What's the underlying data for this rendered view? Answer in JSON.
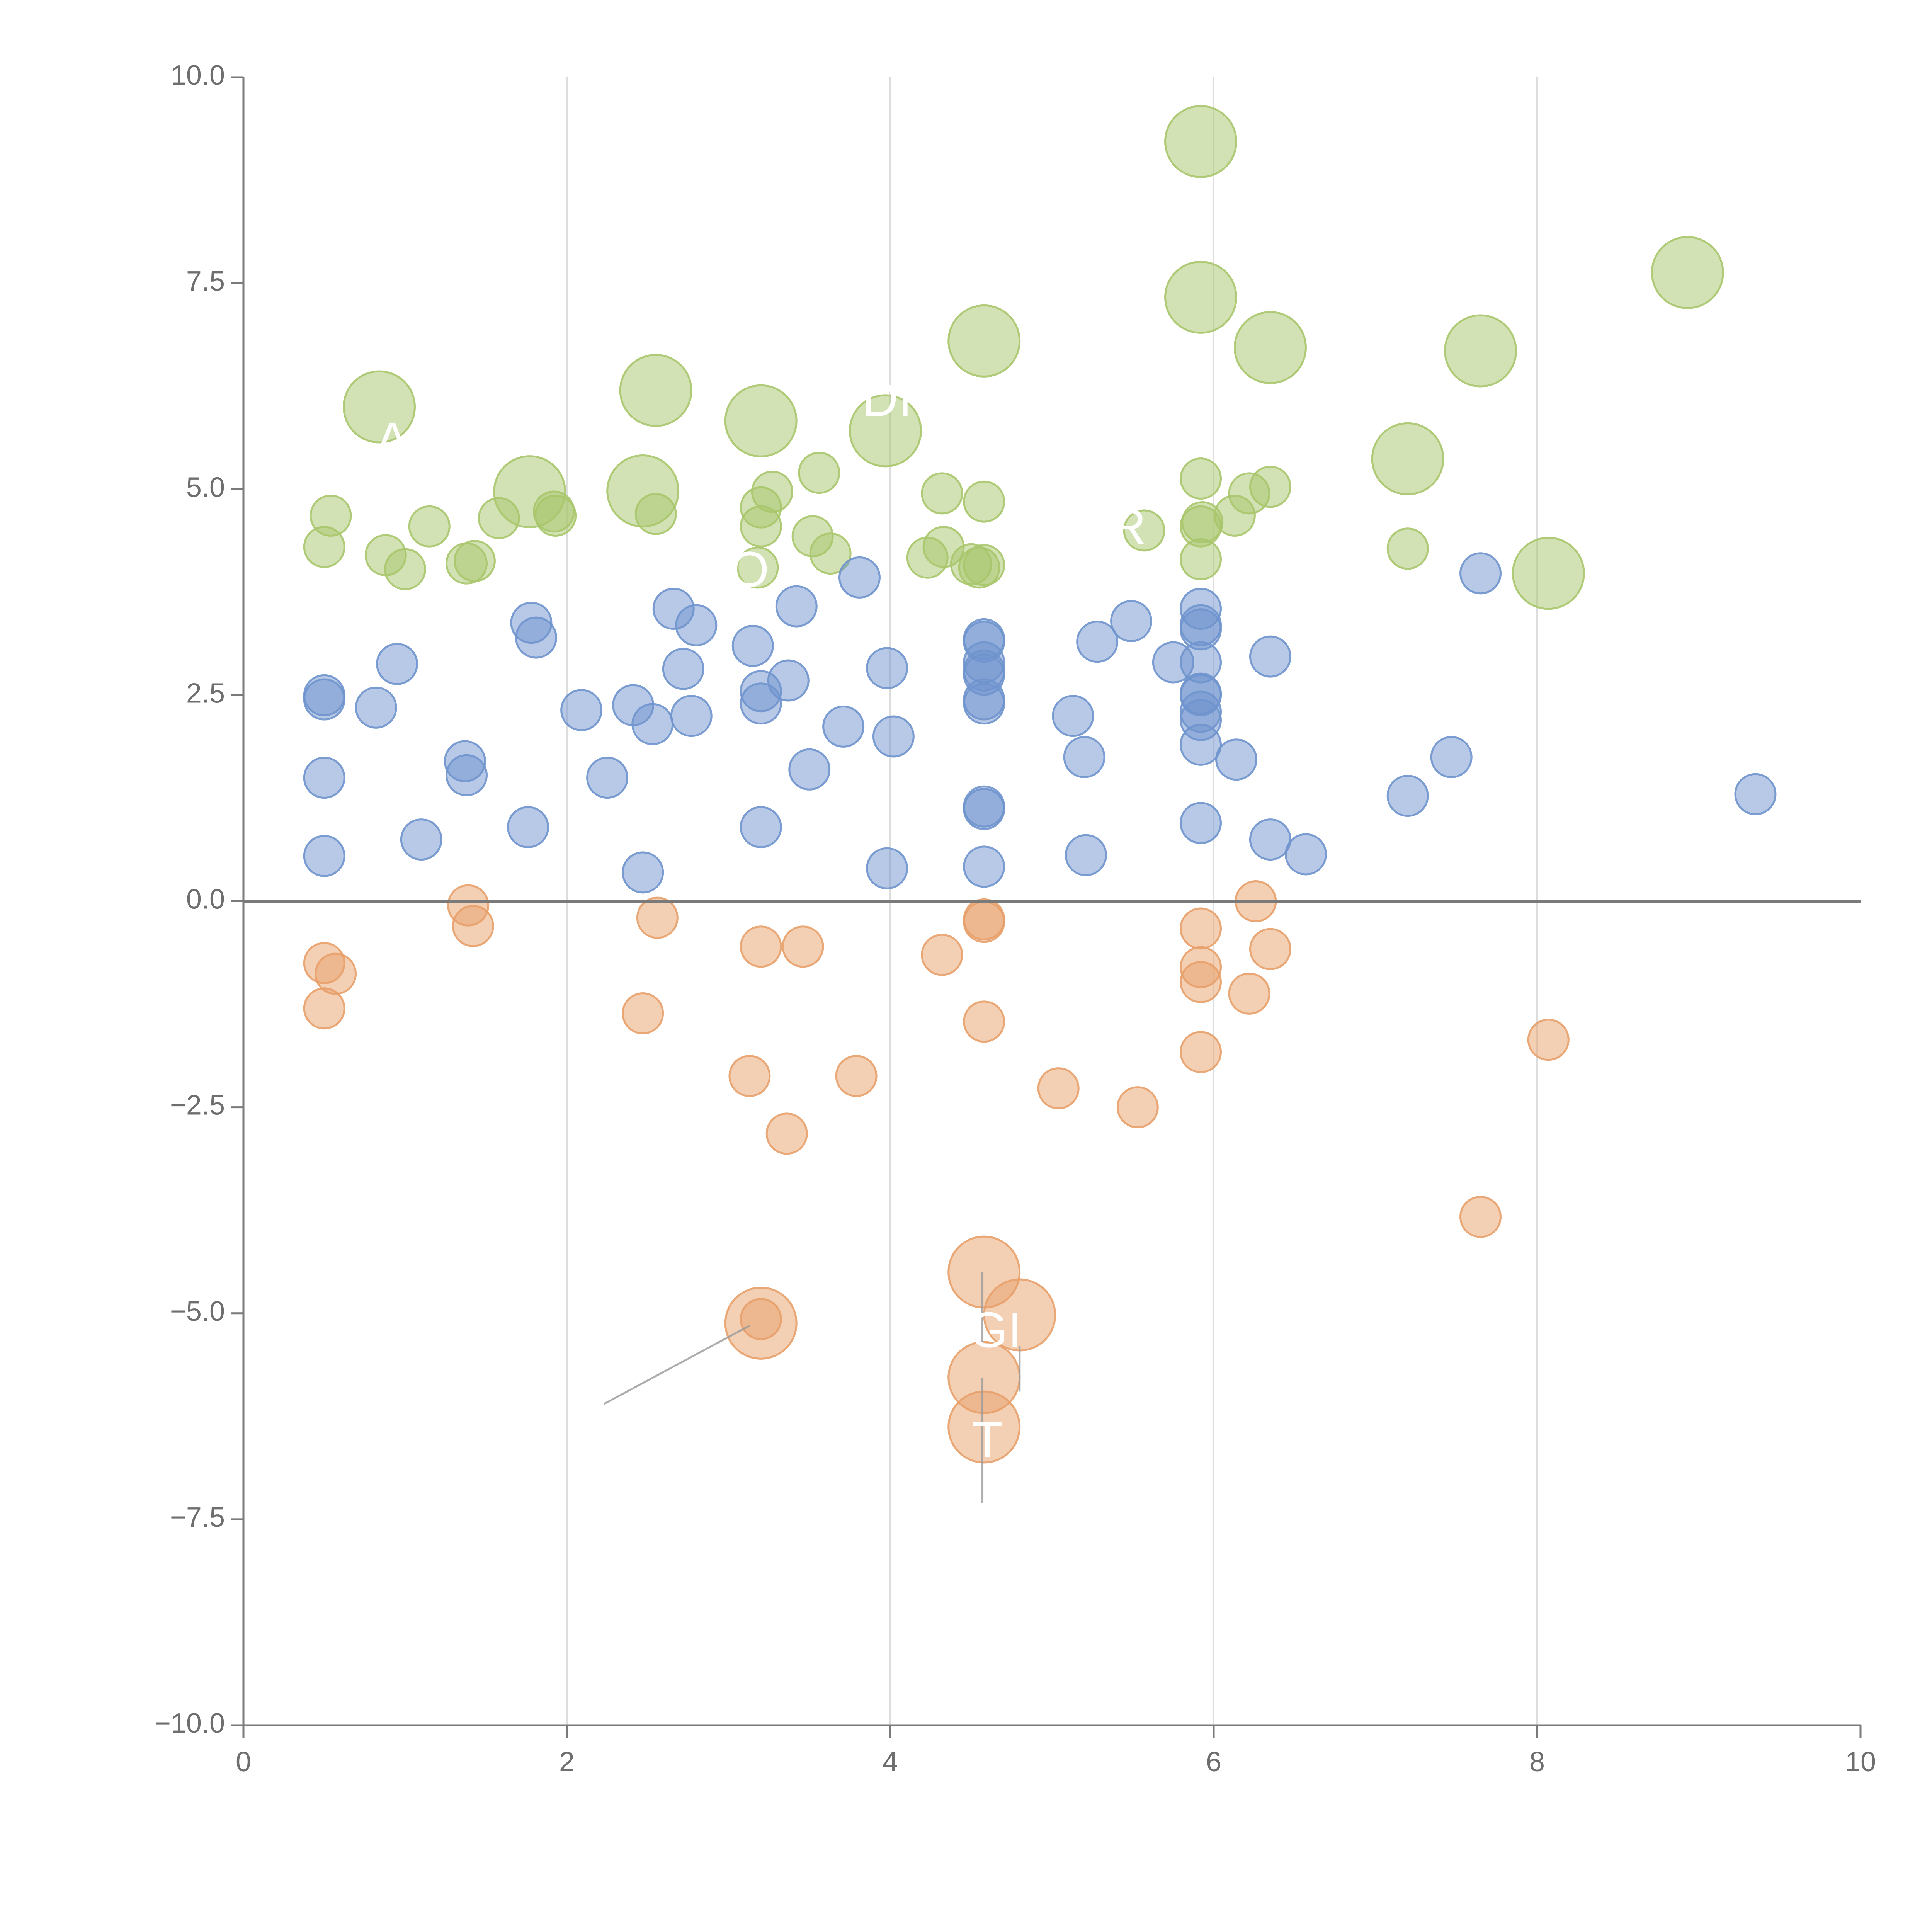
{
  "chart_data": {
    "type": "scatter",
    "title": "",
    "xlabel": "",
    "ylabel": "",
    "xlim": [
      0,
      10
    ],
    "ylim": [
      -10,
      10
    ],
    "x_ticks": [
      0,
      2,
      4,
      6,
      8,
      10
    ],
    "x_tick_labels": [
      "0",
      "2",
      "4",
      "6",
      "8",
      "10"
    ],
    "y_ticks": [
      10,
      7.5,
      5,
      2.5,
      0,
      -2.5,
      -5,
      -7.5,
      -10
    ],
    "y_tick_labels": [
      "10.0",
      "7.5",
      "5.0",
      "2.5",
      "0.0",
      "−2.5",
      "−5.0",
      "−7.5",
      "−10.0"
    ],
    "vertical_gridlines_at": [
      2,
      4,
      6,
      8
    ],
    "zero_line": 0,
    "colors": {
      "green": "#a8c66c",
      "blue": "#6f94cd",
      "orange": "#e8a06a",
      "axis": "#7a7a7a",
      "grid": "#dddddd",
      "label": "#ffffff"
    },
    "series": [
      {
        "name": "green-small",
        "color": "#a8c66c",
        "size": "small",
        "points": [
          [
            0.5,
            4.3
          ],
          [
            0.54,
            4.68
          ],
          [
            0.88,
            4.2
          ],
          [
            1.0,
            4.03
          ],
          [
            1.15,
            4.55
          ],
          [
            1.38,
            4.1
          ],
          [
            1.43,
            4.13
          ],
          [
            1.58,
            4.65
          ],
          [
            1.92,
            4.73
          ],
          [
            1.93,
            4.68
          ],
          [
            2.55,
            4.7
          ],
          [
            3.18,
            4.05
          ],
          [
            3.2,
            4.55
          ],
          [
            3.2,
            4.78
          ],
          [
            3.27,
            4.97
          ],
          [
            3.52,
            4.43
          ],
          [
            3.56,
            5.2
          ],
          [
            3.63,
            4.22
          ],
          [
            4.23,
            4.17
          ],
          [
            4.32,
            4.95
          ],
          [
            4.33,
            4.3
          ],
          [
            4.5,
            4.09
          ],
          [
            4.55,
            4.05
          ],
          [
            4.58,
            4.08
          ],
          [
            4.58,
            4.85
          ],
          [
            5.57,
            4.5
          ],
          [
            5.92,
            4.15
          ],
          [
            5.92,
            4.55
          ],
          [
            5.93,
            4.6
          ],
          [
            5.92,
            5.13
          ],
          [
            6.13,
            4.68
          ],
          [
            6.22,
            4.95
          ],
          [
            6.35,
            5.03
          ],
          [
            7.2,
            4.28
          ]
        ]
      },
      {
        "name": "green-large",
        "color": "#a8c66c",
        "size": "large",
        "points": [
          [
            0.84,
            6.0
          ],
          [
            1.77,
            4.97
          ],
          [
            2.47,
            4.98
          ],
          [
            2.55,
            6.2
          ],
          [
            3.2,
            5.83
          ],
          [
            3.97,
            5.71
          ],
          [
            4.58,
            6.8
          ],
          [
            5.92,
            9.22
          ],
          [
            5.92,
            7.33
          ],
          [
            6.35,
            6.72
          ],
          [
            7.2,
            5.37
          ],
          [
            7.65,
            6.68
          ],
          [
            8.07,
            3.98
          ],
          [
            8.93,
            7.63
          ]
        ]
      },
      {
        "name": "blue",
        "color": "#6f94cd",
        "size": "small",
        "points": [
          [
            0.5,
            2.5
          ],
          [
            0.5,
            2.45
          ],
          [
            0.5,
            1.5
          ],
          [
            0.5,
            0.55
          ],
          [
            0.82,
            2.35
          ],
          [
            0.95,
            2.88
          ],
          [
            1.1,
            0.75
          ],
          [
            1.37,
            1.7
          ],
          [
            1.38,
            1.53
          ],
          [
            1.76,
            0.9
          ],
          [
            1.78,
            3.38
          ],
          [
            1.81,
            3.2
          ],
          [
            2.09,
            2.32
          ],
          [
            2.25,
            1.5
          ],
          [
            2.41,
            2.38
          ],
          [
            2.47,
            0.35
          ],
          [
            2.53,
            2.15
          ],
          [
            2.66,
            3.55
          ],
          [
            2.72,
            2.82
          ],
          [
            2.77,
            2.25
          ],
          [
            2.8,
            3.35
          ],
          [
            3.15,
            3.1
          ],
          [
            3.2,
            2.55
          ],
          [
            3.2,
            2.4
          ],
          [
            3.2,
            0.9
          ],
          [
            3.37,
            2.68
          ],
          [
            3.42,
            3.58
          ],
          [
            3.5,
            1.6
          ],
          [
            3.71,
            2.12
          ],
          [
            3.81,
            3.93
          ],
          [
            3.98,
            2.83
          ],
          [
            3.98,
            0.4
          ],
          [
            4.02,
            2.0
          ],
          [
            4.58,
            3.18
          ],
          [
            4.58,
            3.15
          ],
          [
            4.58,
            2.9
          ],
          [
            4.58,
            2.8
          ],
          [
            4.58,
            2.75
          ],
          [
            4.58,
            2.45
          ],
          [
            4.58,
            2.4
          ],
          [
            4.58,
            1.15
          ],
          [
            4.58,
            1.12
          ],
          [
            4.58,
            0.42
          ],
          [
            5.13,
            2.25
          ],
          [
            5.2,
            1.75
          ],
          [
            5.21,
            0.56
          ],
          [
            5.28,
            3.15
          ],
          [
            5.49,
            3.4
          ],
          [
            5.75,
            2.9
          ],
          [
            5.92,
            3.55
          ],
          [
            5.92,
            3.35
          ],
          [
            5.92,
            3.3
          ],
          [
            5.92,
            2.9
          ],
          [
            5.92,
            2.52
          ],
          [
            5.92,
            2.5
          ],
          [
            5.92,
            2.3
          ],
          [
            5.92,
            2.2
          ],
          [
            5.92,
            1.9
          ],
          [
            5.92,
            0.95
          ],
          [
            6.14,
            1.72
          ],
          [
            6.35,
            2.97
          ],
          [
            6.35,
            0.75
          ],
          [
            6.57,
            0.57
          ],
          [
            7.2,
            1.28
          ],
          [
            7.47,
            1.75
          ],
          [
            7.65,
            3.98
          ],
          [
            9.35,
            1.3
          ]
        ]
      },
      {
        "name": "orange-small",
        "color": "#e8a06a",
        "size": "small",
        "points": [
          [
            0.5,
            -0.75
          ],
          [
            0.5,
            -1.3
          ],
          [
            0.57,
            -0.88
          ],
          [
            1.39,
            -0.05
          ],
          [
            1.42,
            -0.3
          ],
          [
            2.47,
            -1.36
          ],
          [
            2.56,
            -0.2
          ],
          [
            3.13,
            -2.12
          ],
          [
            3.2,
            -0.55
          ],
          [
            3.2,
            -5.07
          ],
          [
            3.36,
            -2.82
          ],
          [
            3.46,
            -0.55
          ],
          [
            3.79,
            -2.12
          ],
          [
            4.32,
            -0.65
          ],
          [
            4.58,
            -0.22
          ],
          [
            4.58,
            -0.25
          ],
          [
            4.58,
            -1.46
          ],
          [
            5.04,
            -2.27
          ],
          [
            5.53,
            -2.5
          ],
          [
            5.92,
            -0.33
          ],
          [
            5.92,
            -0.8
          ],
          [
            5.92,
            -0.98
          ],
          [
            5.92,
            -1.83
          ],
          [
            6.22,
            -1.12
          ],
          [
            6.26,
            0.0
          ],
          [
            6.35,
            -0.58
          ],
          [
            7.65,
            -3.83
          ],
          [
            8.07,
            -1.68
          ]
        ]
      },
      {
        "name": "orange-large",
        "color": "#e8a06a",
        "size": "large",
        "points": [
          [
            3.2,
            -5.12
          ],
          [
            4.58,
            -4.5
          ],
          [
            4.8,
            -5.02
          ],
          [
            4.58,
            -5.78
          ],
          [
            4.58,
            -6.38
          ]
        ]
      }
    ],
    "labels": [
      {
        "text": "A",
        "x": 0.92,
        "y": 5.55
      },
      {
        "text": "DI",
        "x": 3.98,
        "y": 6.05
      },
      {
        "text": "R",
        "x": 5.47,
        "y": 4.5
      },
      {
        "text": "O",
        "x": 3.13,
        "y": 3.98
      },
      {
        "text": "GI",
        "x": 4.65,
        "y": -5.25
      },
      {
        "text": "T",
        "x": 4.6,
        "y": -6.58
      }
    ],
    "connectors": [
      {
        "from": [
          3.13,
          -5.15
        ],
        "to": [
          2.23,
          -6.1
        ]
      },
      {
        "from": [
          4.57,
          -4.5
        ],
        "to": [
          4.57,
          -5.35
        ]
      },
      {
        "from": [
          4.8,
          -5.4
        ],
        "to": [
          4.8,
          -5.95
        ]
      },
      {
        "from": [
          4.57,
          -5.78
        ],
        "to": [
          4.57,
          -7.3
        ]
      }
    ]
  }
}
